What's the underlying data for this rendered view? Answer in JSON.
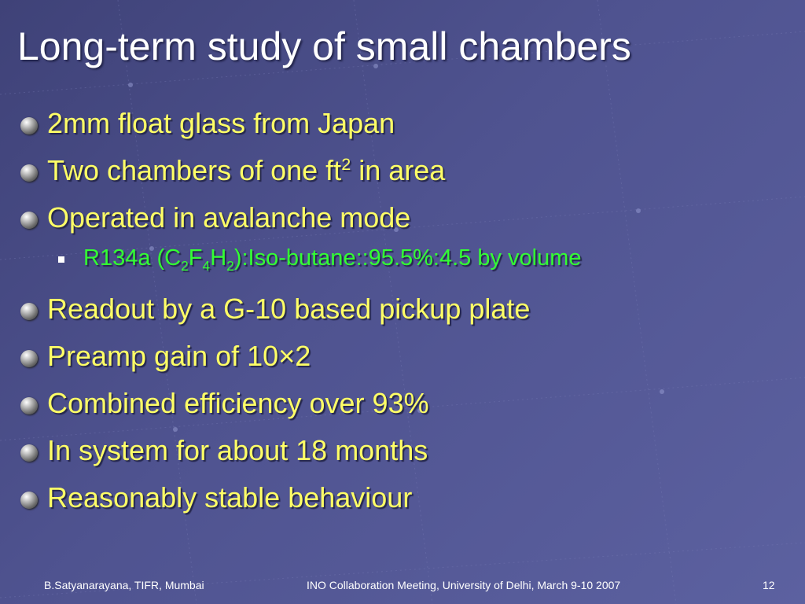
{
  "slide": {
    "title": "Long-term study of small chambers",
    "bullets": [
      {
        "parts": [
          {
            "text": "2mm float glass from Japan"
          }
        ]
      },
      {
        "parts": [
          {
            "text": "Two chambers of one ft"
          },
          {
            "text": "2",
            "style": "sup"
          },
          {
            "text": " in area"
          }
        ]
      },
      {
        "parts": [
          {
            "text": "Operated in avalanche mode"
          }
        ],
        "sub_bullets": [
          {
            "parts": [
              {
                "text": "R134a (C"
              },
              {
                "text": "2",
                "style": "sub"
              },
              {
                "text": "F"
              },
              {
                "text": "4",
                "style": "sub"
              },
              {
                "text": "H"
              },
              {
                "text": "2",
                "style": "sub"
              },
              {
                "text": "):Iso-butane::95.5%:4.5 by volume"
              }
            ]
          }
        ]
      },
      {
        "parts": [
          {
            "text": "Readout by a G-10 based pickup plate"
          }
        ]
      },
      {
        "parts": [
          {
            "text": "Preamp gain of 10×2"
          }
        ]
      },
      {
        "parts": [
          {
            "text": "Combined efficiency over 93%"
          }
        ]
      },
      {
        "parts": [
          {
            "text": "In system for about 18 months"
          }
        ]
      },
      {
        "parts": [
          {
            "text": "Reasonably stable behaviour"
          }
        ]
      }
    ],
    "footer": {
      "left": "B.Satyanarayana, TIFR, Mumbai",
      "center": "INO Collaboration Meeting, University of Delhi, March 9-10 2007",
      "page": "12"
    }
  }
}
